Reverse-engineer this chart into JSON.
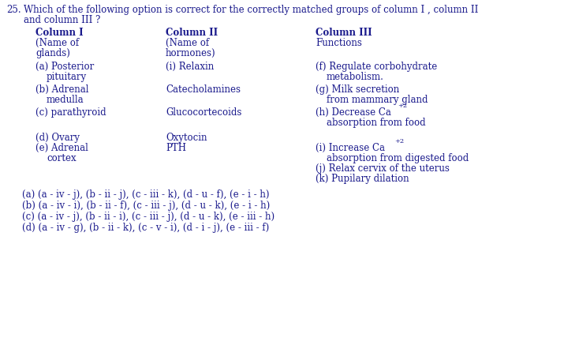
{
  "bg_color": "#ffffff",
  "text_color": "#1a1a8c",
  "fs": 8.5,
  "fs_super": 6.0,
  "c1x": 45,
  "c2x": 210,
  "c3x": 400,
  "question_num": "25.",
  "question_line1": "Which of the following option is correct for the correctly matched groups of column I , column II",
  "question_line2": "and column III ?",
  "col_headers": [
    "Column I",
    "Column II",
    "Column III"
  ],
  "col_sub1": [
    "(Name of",
    "glands)"
  ],
  "col_sub2": [
    "(Name of",
    "hormones)"
  ],
  "col_sub3": "Functions",
  "options": [
    "(a) (a - iv - j), (b - ii - j), (c - iii - k), (d - u - f), (e - i - h)",
    "(b) (a - iv - i), (b - ii - f), (c - iii - j), (d - u - k), (e - i - h)",
    "(c) (a - iv - j), (b - ii - i), (c - iii - j), (d - u - k), (e - iii - h)",
    "(d) (a - iv - g), (b - ii - k), (c - v - i), (d - i - j), (e - iii - f)"
  ]
}
